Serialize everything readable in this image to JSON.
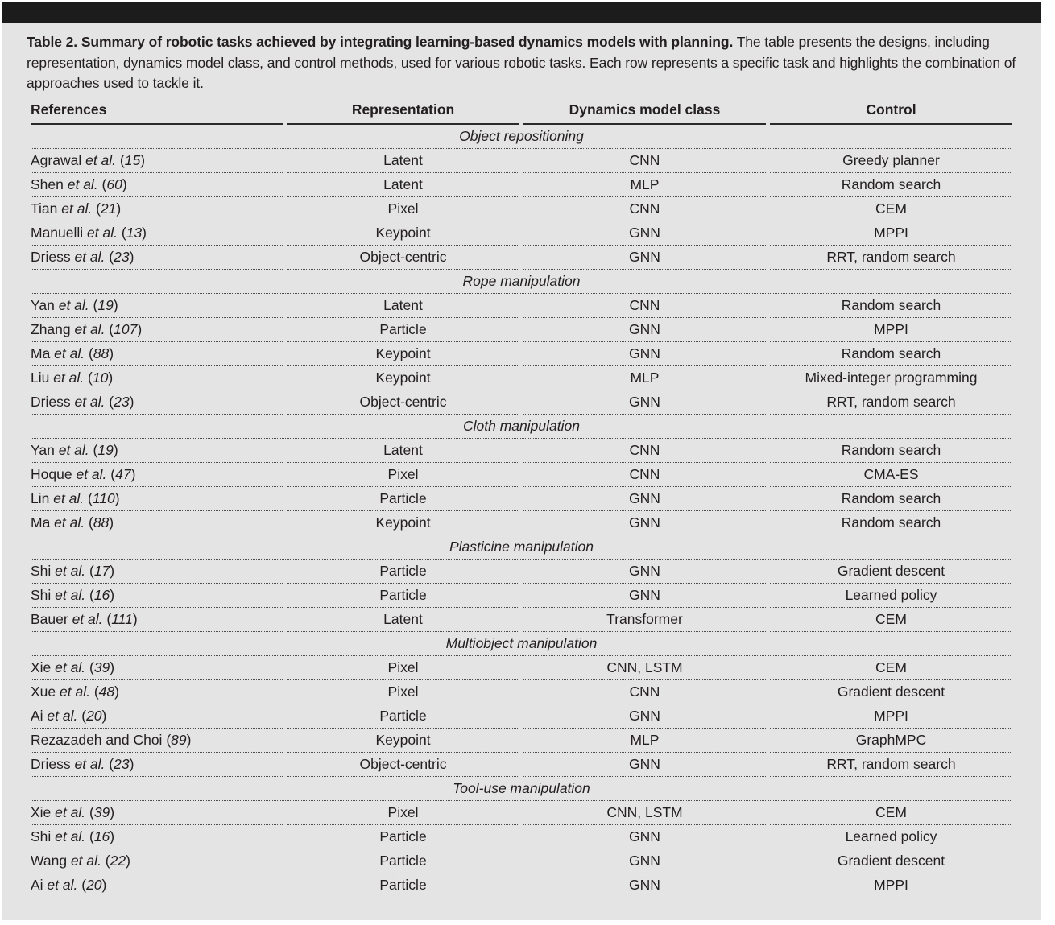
{
  "page": {
    "caption_bold": "Table 2. Summary of robotic tasks achieved by integrating learning-based dynamics models with planning.",
    "caption_text": "The table presents the designs, including representation, dynamics model class, and control methods, used for various robotic tasks. Each row represents a specific task and highlights the combination of approaches used to tackle it."
  },
  "colors": {
    "top_bar": "#1c1c1c",
    "panel_bg": "#e4e4e4",
    "text": "#231f20",
    "header_rule": "#2a2a2a",
    "dotted_rule": "#4b4b4b"
  },
  "table": {
    "headers": [
      "References",
      "Representation",
      "Dynamics model class",
      "Control"
    ],
    "sections": [
      {
        "title": "Object repositioning",
        "rows": [
          {
            "ref_name": "Agrawal",
            "ref_etal": "et al.",
            "ref_num": "15",
            "representation": "Latent",
            "dynamics": "CNN",
            "control": "Greedy planner"
          },
          {
            "ref_name": "Shen",
            "ref_etal": "et al.",
            "ref_num": "60",
            "representation": "Latent",
            "dynamics": "MLP",
            "control": "Random search"
          },
          {
            "ref_name": "Tian",
            "ref_etal": "et al.",
            "ref_num": "21",
            "representation": "Pixel",
            "dynamics": "CNN",
            "control": "CEM"
          },
          {
            "ref_name": "Manuelli",
            "ref_etal": "et al.",
            "ref_num": "13",
            "representation": "Keypoint",
            "dynamics": "GNN",
            "control": "MPPI"
          },
          {
            "ref_name": "Driess",
            "ref_etal": "et al.",
            "ref_num": "23",
            "representation": "Object-centric",
            "dynamics": "GNN",
            "control": "RRT, random search"
          }
        ]
      },
      {
        "title": "Rope manipulation",
        "rows": [
          {
            "ref_name": "Yan",
            "ref_etal": "et al.",
            "ref_num": "19",
            "representation": "Latent",
            "dynamics": "CNN",
            "control": "Random search"
          },
          {
            "ref_name": "Zhang",
            "ref_etal": "et al.",
            "ref_num": "107",
            "representation": "Particle",
            "dynamics": "GNN",
            "control": "MPPI"
          },
          {
            "ref_name": "Ma",
            "ref_etal": "et al.",
            "ref_num": "88",
            "representation": "Keypoint",
            "dynamics": "GNN",
            "control": "Random search"
          },
          {
            "ref_name": "Liu",
            "ref_etal": "et al.",
            "ref_num": "10",
            "representation": "Keypoint",
            "dynamics": "MLP",
            "control": "Mixed-integer programming"
          },
          {
            "ref_name": "Driess",
            "ref_etal": "et al.",
            "ref_num": "23",
            "representation": "Object-centric",
            "dynamics": "GNN",
            "control": "RRT, random search"
          }
        ]
      },
      {
        "title": "Cloth manipulation",
        "rows": [
          {
            "ref_name": "Yan",
            "ref_etal": "et al.",
            "ref_num": "19",
            "representation": "Latent",
            "dynamics": "CNN",
            "control": "Random search"
          },
          {
            "ref_name": "Hoque",
            "ref_etal": "et al.",
            "ref_num": "47",
            "representation": "Pixel",
            "dynamics": "CNN",
            "control": "CMA-ES"
          },
          {
            "ref_name": "Lin",
            "ref_etal": "et al.",
            "ref_num": "110",
            "representation": "Particle",
            "dynamics": "GNN",
            "control": "Random search"
          },
          {
            "ref_name": "Ma",
            "ref_etal": "et al.",
            "ref_num": "88",
            "representation": "Keypoint",
            "dynamics": "GNN",
            "control": "Random search"
          }
        ]
      },
      {
        "title": "Plasticine manipulation",
        "rows": [
          {
            "ref_name": "Shi",
            "ref_etal": "et al.",
            "ref_num": "17",
            "representation": "Particle",
            "dynamics": "GNN",
            "control": "Gradient descent"
          },
          {
            "ref_name": "Shi",
            "ref_etal": "et al.",
            "ref_num": "16",
            "representation": "Particle",
            "dynamics": "GNN",
            "control": "Learned policy"
          },
          {
            "ref_name": "Bauer",
            "ref_etal": "et al.",
            "ref_num": "111",
            "representation": "Latent",
            "dynamics": "Transformer",
            "control": "CEM"
          }
        ]
      },
      {
        "title": "Multiobject manipulation",
        "rows": [
          {
            "ref_name": "Xie",
            "ref_etal": "et al.",
            "ref_num": "39",
            "representation": "Pixel",
            "dynamics": "CNN, LSTM",
            "control": "CEM"
          },
          {
            "ref_name": "Xue",
            "ref_etal": "et al.",
            "ref_num": "48",
            "representation": "Pixel",
            "dynamics": "CNN",
            "control": "Gradient descent"
          },
          {
            "ref_name": "Ai",
            "ref_etal": "et al.",
            "ref_num": "20",
            "representation": "Particle",
            "dynamics": "GNN",
            "control": "MPPI"
          },
          {
            "ref_name": "Rezazadeh and Choi",
            "ref_etal": "",
            "ref_num": "89",
            "representation": "Keypoint",
            "dynamics": "MLP",
            "control": "GraphMPC"
          },
          {
            "ref_name": "Driess",
            "ref_etal": "et al.",
            "ref_num": "23",
            "representation": "Object-centric",
            "dynamics": "GNN",
            "control": "RRT, random search"
          }
        ]
      },
      {
        "title": "Tool-use manipulation",
        "rows": [
          {
            "ref_name": "Xie",
            "ref_etal": "et al.",
            "ref_num": "39",
            "representation": "Pixel",
            "dynamics": "CNN, LSTM",
            "control": "CEM"
          },
          {
            "ref_name": "Shi",
            "ref_etal": "et al.",
            "ref_num": "16",
            "representation": "Particle",
            "dynamics": "GNN",
            "control": "Learned policy"
          },
          {
            "ref_name": "Wang",
            "ref_etal": "et al.",
            "ref_num": "22",
            "representation": "Particle",
            "dynamics": "GNN",
            "control": "Gradient descent"
          },
          {
            "ref_name": "Ai",
            "ref_etal": "et al.",
            "ref_num": "20",
            "representation": "Particle",
            "dynamics": "GNN",
            "control": "MPPI"
          }
        ]
      }
    ]
  }
}
